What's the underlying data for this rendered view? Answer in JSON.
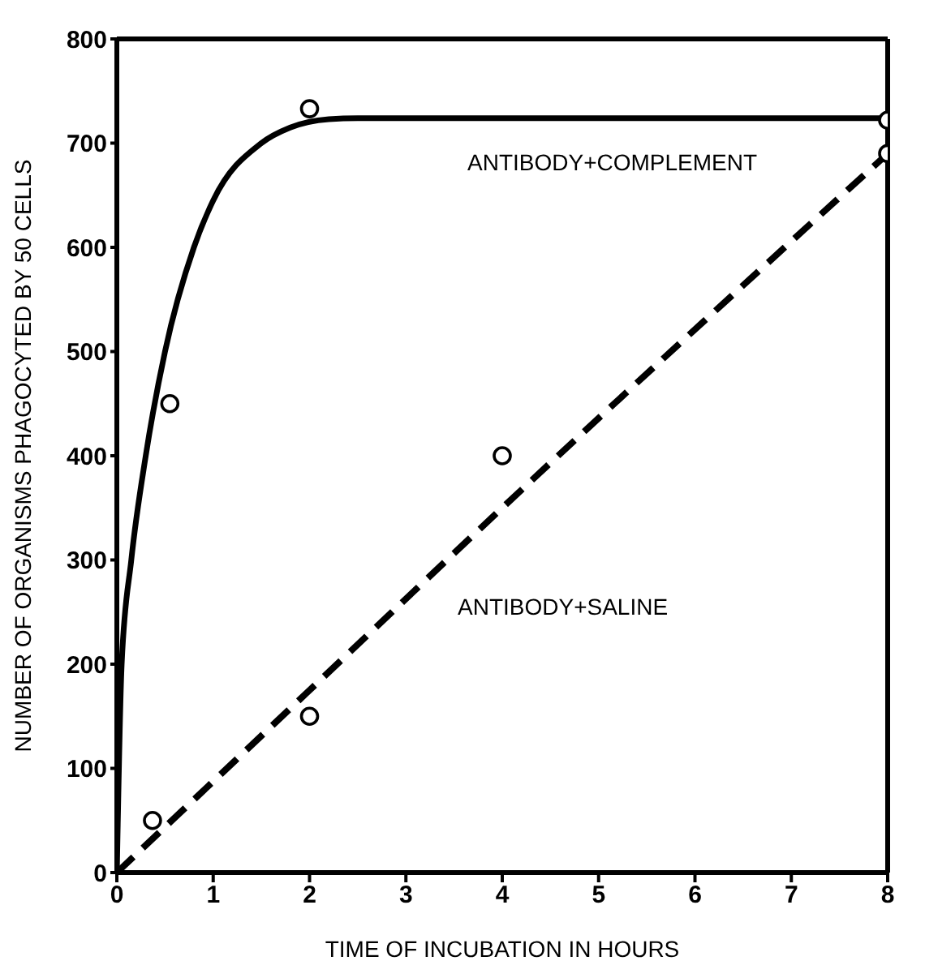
{
  "chart_data": {
    "type": "line",
    "xlabel": "TIME OF INCUBATION IN HOURS",
    "ylabel": "NUMBER OF ORGANISMS PHAGOCYTED BY 50 CELLS",
    "xlim": [
      0,
      8
    ],
    "xticks": [
      0,
      1,
      2,
      3,
      4,
      5,
      6,
      7,
      8
    ],
    "ylim": [
      0,
      800
    ],
    "yticks": [
      0,
      100,
      200,
      300,
      400,
      500,
      600,
      700,
      800
    ],
    "grid": false,
    "legend": false,
    "series": [
      {
        "color": "#000000",
        "line_style": "solid",
        "marker": "none",
        "x": [
          0,
          0.05,
          0.15,
          0.3,
          0.5,
          0.8,
          1.0,
          1.5,
          1.8,
          2.2,
          2.5,
          8
        ],
        "values": [
          0,
          200,
          300,
          400,
          500,
          600,
          645,
          700,
          715,
          723,
          724,
          724
        ]
      },
      {
        "color": "#000000",
        "line_style": "dashed",
        "marker": "none",
        "x": [
          0,
          2,
          4,
          8
        ],
        "values": [
          0,
          175,
          350,
          690
        ]
      },
      {
        "type": "scatter",
        "color": "#000000",
        "marker": "circle",
        "x": [
          0.37,
          0.55,
          2.0,
          2.0,
          4.0,
          8,
          8
        ],
        "values": [
          50,
          450,
          733,
          150,
          400,
          722,
          690
        ]
      }
    ],
    "annotations": [
      "ANTIBODY+COMPLEMENT",
      "ANTIBODY+SALINE"
    ]
  }
}
